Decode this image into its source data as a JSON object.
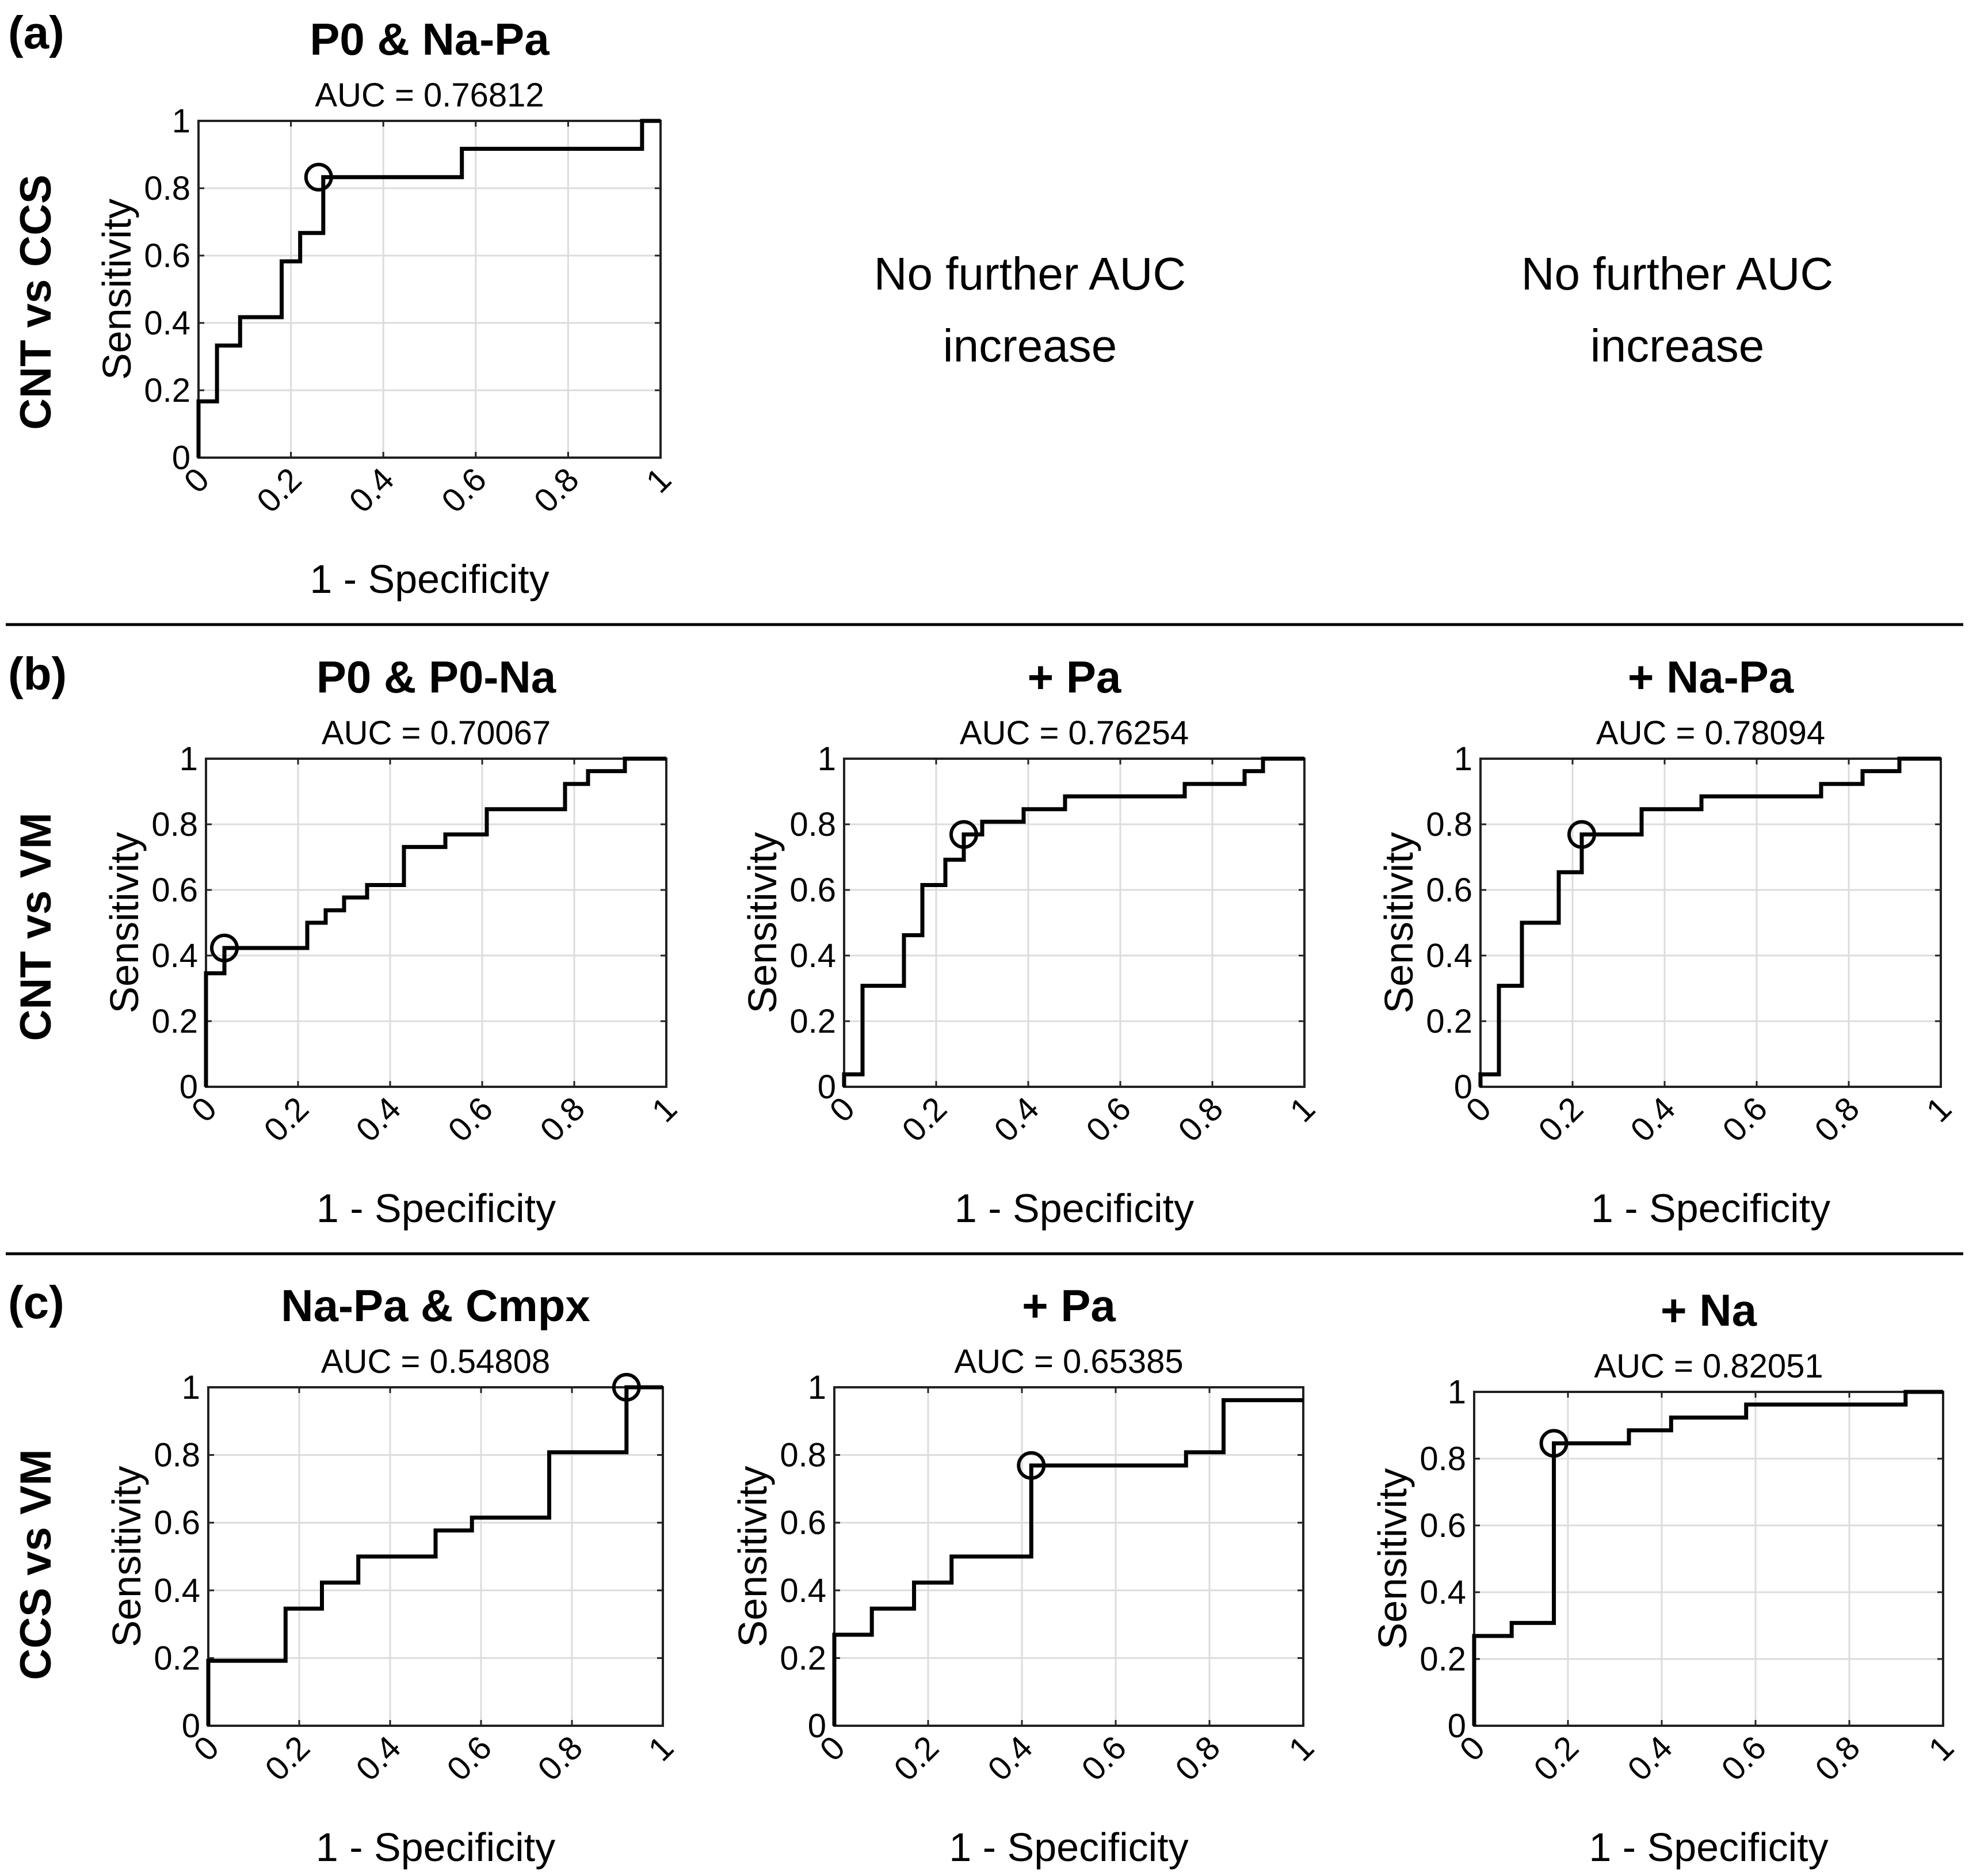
{
  "panels": [
    {
      "label": "(a)",
      "row_label": "CNT vs CCS"
    },
    {
      "label": "(b)",
      "row_label": "CNT vs VM"
    },
    {
      "label": "(c)",
      "row_label": "CCS vs VM"
    }
  ],
  "notes": [
    {
      "line1": "No further AUC",
      "line2": "increase"
    },
    {
      "line1": "No further AUC",
      "line2": "increase"
    }
  ],
  "axis": {
    "x_ticks": [
      "0",
      "0.2",
      "0.4",
      "0.6",
      "0.8",
      "1"
    ],
    "y_ticks": [
      "0",
      "0.2",
      "0.4",
      "0.6",
      "0.8",
      "1"
    ]
  },
  "chart_data": [
    {
      "type": "line",
      "title": "P0 & Na-Pa",
      "subtitle": "AUC = 0.76812",
      "xlabel": "1 - Specificity",
      "ylabel": "Sensitivity",
      "xlim": [
        0,
        1
      ],
      "ylim": [
        0,
        1
      ],
      "grid": true,
      "x": [
        0,
        0,
        0.04,
        0.04,
        0.09,
        0.09,
        0.18,
        0.18,
        0.22,
        0.22,
        0.27,
        0.27,
        0.57,
        0.57,
        0.96,
        0.96,
        1
      ],
      "y": [
        0,
        0.167,
        0.167,
        0.333,
        0.333,
        0.417,
        0.417,
        0.583,
        0.583,
        0.667,
        0.667,
        0.833,
        0.833,
        0.917,
        0.917,
        1,
        1
      ],
      "optimal_point": [
        0.26,
        0.833
      ]
    },
    {
      "type": "line",
      "title": "P0 & P0-Na",
      "subtitle": "AUC = 0.70067",
      "xlabel": "1 - Specificity",
      "ylabel": "Sensitivity",
      "xlim": [
        0,
        1
      ],
      "ylim": [
        0,
        1
      ],
      "grid": true,
      "x": [
        0,
        0,
        0.04,
        0.04,
        0.22,
        0.22,
        0.26,
        0.26,
        0.3,
        0.3,
        0.35,
        0.35,
        0.43,
        0.43,
        0.52,
        0.52,
        0.61,
        0.61,
        0.78,
        0.78,
        0.83,
        0.83,
        0.91,
        0.91,
        1
      ],
      "y": [
        0,
        0.346,
        0.346,
        0.423,
        0.423,
        0.5,
        0.5,
        0.538,
        0.538,
        0.577,
        0.577,
        0.615,
        0.615,
        0.731,
        0.731,
        0.769,
        0.769,
        0.846,
        0.846,
        0.923,
        0.923,
        0.962,
        0.962,
        1,
        1
      ],
      "optimal_point": [
        0.04,
        0.423
      ]
    },
    {
      "type": "line",
      "title": "+ Pa",
      "subtitle": "AUC = 0.76254",
      "xlabel": "1 - Specificity",
      "ylabel": "Sensitivity",
      "xlim": [
        0,
        1
      ],
      "ylim": [
        0,
        1
      ],
      "grid": true,
      "x": [
        0,
        0,
        0.04,
        0.04,
        0.09,
        0.09,
        0.13,
        0.13,
        0.17,
        0.17,
        0.22,
        0.22,
        0.26,
        0.26,
        0.3,
        0.3,
        0.39,
        0.39,
        0.48,
        0.48,
        0.74,
        0.74,
        0.87,
        0.87,
        0.91,
        0.91,
        1
      ],
      "y": [
        0,
        0.038,
        0.038,
        0.308,
        0.308,
        0.308,
        0.308,
        0.462,
        0.462,
        0.615,
        0.615,
        0.692,
        0.692,
        0.769,
        0.769,
        0.808,
        0.808,
        0.846,
        0.846,
        0.885,
        0.885,
        0.923,
        0.923,
        0.962,
        0.962,
        1,
        1
      ],
      "optimal_point": [
        0.26,
        0.769
      ]
    },
    {
      "type": "line",
      "title": "+ Na-Pa",
      "subtitle": "AUC = 0.78094",
      "xlabel": "1 - Specificity",
      "ylabel": "Sensitivity",
      "xlim": [
        0,
        1
      ],
      "ylim": [
        0,
        1
      ],
      "grid": true,
      "x": [
        0,
        0,
        0.04,
        0.04,
        0.09,
        0.09,
        0.17,
        0.17,
        0.22,
        0.22,
        0.35,
        0.35,
        0.48,
        0.48,
        0.74,
        0.74,
        0.83,
        0.83,
        0.91,
        0.91,
        1
      ],
      "y": [
        0,
        0.038,
        0.038,
        0.308,
        0.308,
        0.5,
        0.5,
        0.654,
        0.654,
        0.769,
        0.769,
        0.846,
        0.846,
        0.885,
        0.885,
        0.923,
        0.923,
        0.962,
        0.962,
        1,
        1
      ],
      "optimal_point": [
        0.22,
        0.769
      ]
    },
    {
      "type": "line",
      "title": "Na-Pa & Cmpx",
      "subtitle": "AUC = 0.54808",
      "xlabel": "1 - Specificity",
      "ylabel": "Sensitivity",
      "xlim": [
        0,
        1
      ],
      "ylim": [
        0,
        1
      ],
      "grid": true,
      "x": [
        0,
        0,
        0.17,
        0.17,
        0.25,
        0.25,
        0.33,
        0.33,
        0.5,
        0.5,
        0.58,
        0.58,
        0.75,
        0.75,
        0.92,
        0.92,
        1
      ],
      "y": [
        0,
        0.192,
        0.192,
        0.346,
        0.346,
        0.423,
        0.423,
        0.5,
        0.5,
        0.577,
        0.577,
        0.615,
        0.615,
        0.808,
        0.808,
        1,
        1
      ],
      "optimal_point": [
        0.92,
        1
      ]
    },
    {
      "type": "line",
      "title": "+ Pa",
      "subtitle": "AUC = 0.65385",
      "xlabel": "1 - Specificity",
      "ylabel": "Sensitivity",
      "xlim": [
        0,
        1
      ],
      "ylim": [
        0,
        1
      ],
      "grid": true,
      "x": [
        0,
        0,
        0.08,
        0.08,
        0.17,
        0.17,
        0.25,
        0.25,
        0.42,
        0.42,
        0.75,
        0.75,
        0.83,
        0.83,
        1
      ],
      "y": [
        0,
        0.269,
        0.269,
        0.346,
        0.346,
        0.423,
        0.423,
        0.5,
        0.5,
        0.769,
        0.769,
        0.808,
        0.808,
        0.962,
        0.962
      ],
      "optimal_point": [
        0.42,
        0.769
      ]
    },
    {
      "type": "line",
      "title": "+ Na",
      "subtitle": "AUC = 0.82051",
      "xlabel": "1 - Specificity",
      "ylabel": "Sensitivity",
      "xlim": [
        0,
        1
      ],
      "ylim": [
        0,
        1
      ],
      "grid": true,
      "x": [
        0,
        0,
        0.08,
        0.08,
        0.17,
        0.17,
        0.33,
        0.33,
        0.42,
        0.42,
        0.58,
        0.58,
        0.92,
        0.92,
        1
      ],
      "y": [
        0,
        0.269,
        0.269,
        0.308,
        0.308,
        0.846,
        0.846,
        0.885,
        0.885,
        0.923,
        0.923,
        0.962,
        0.962,
        1,
        1
      ],
      "optimal_point": [
        0.17,
        0.846
      ]
    }
  ]
}
